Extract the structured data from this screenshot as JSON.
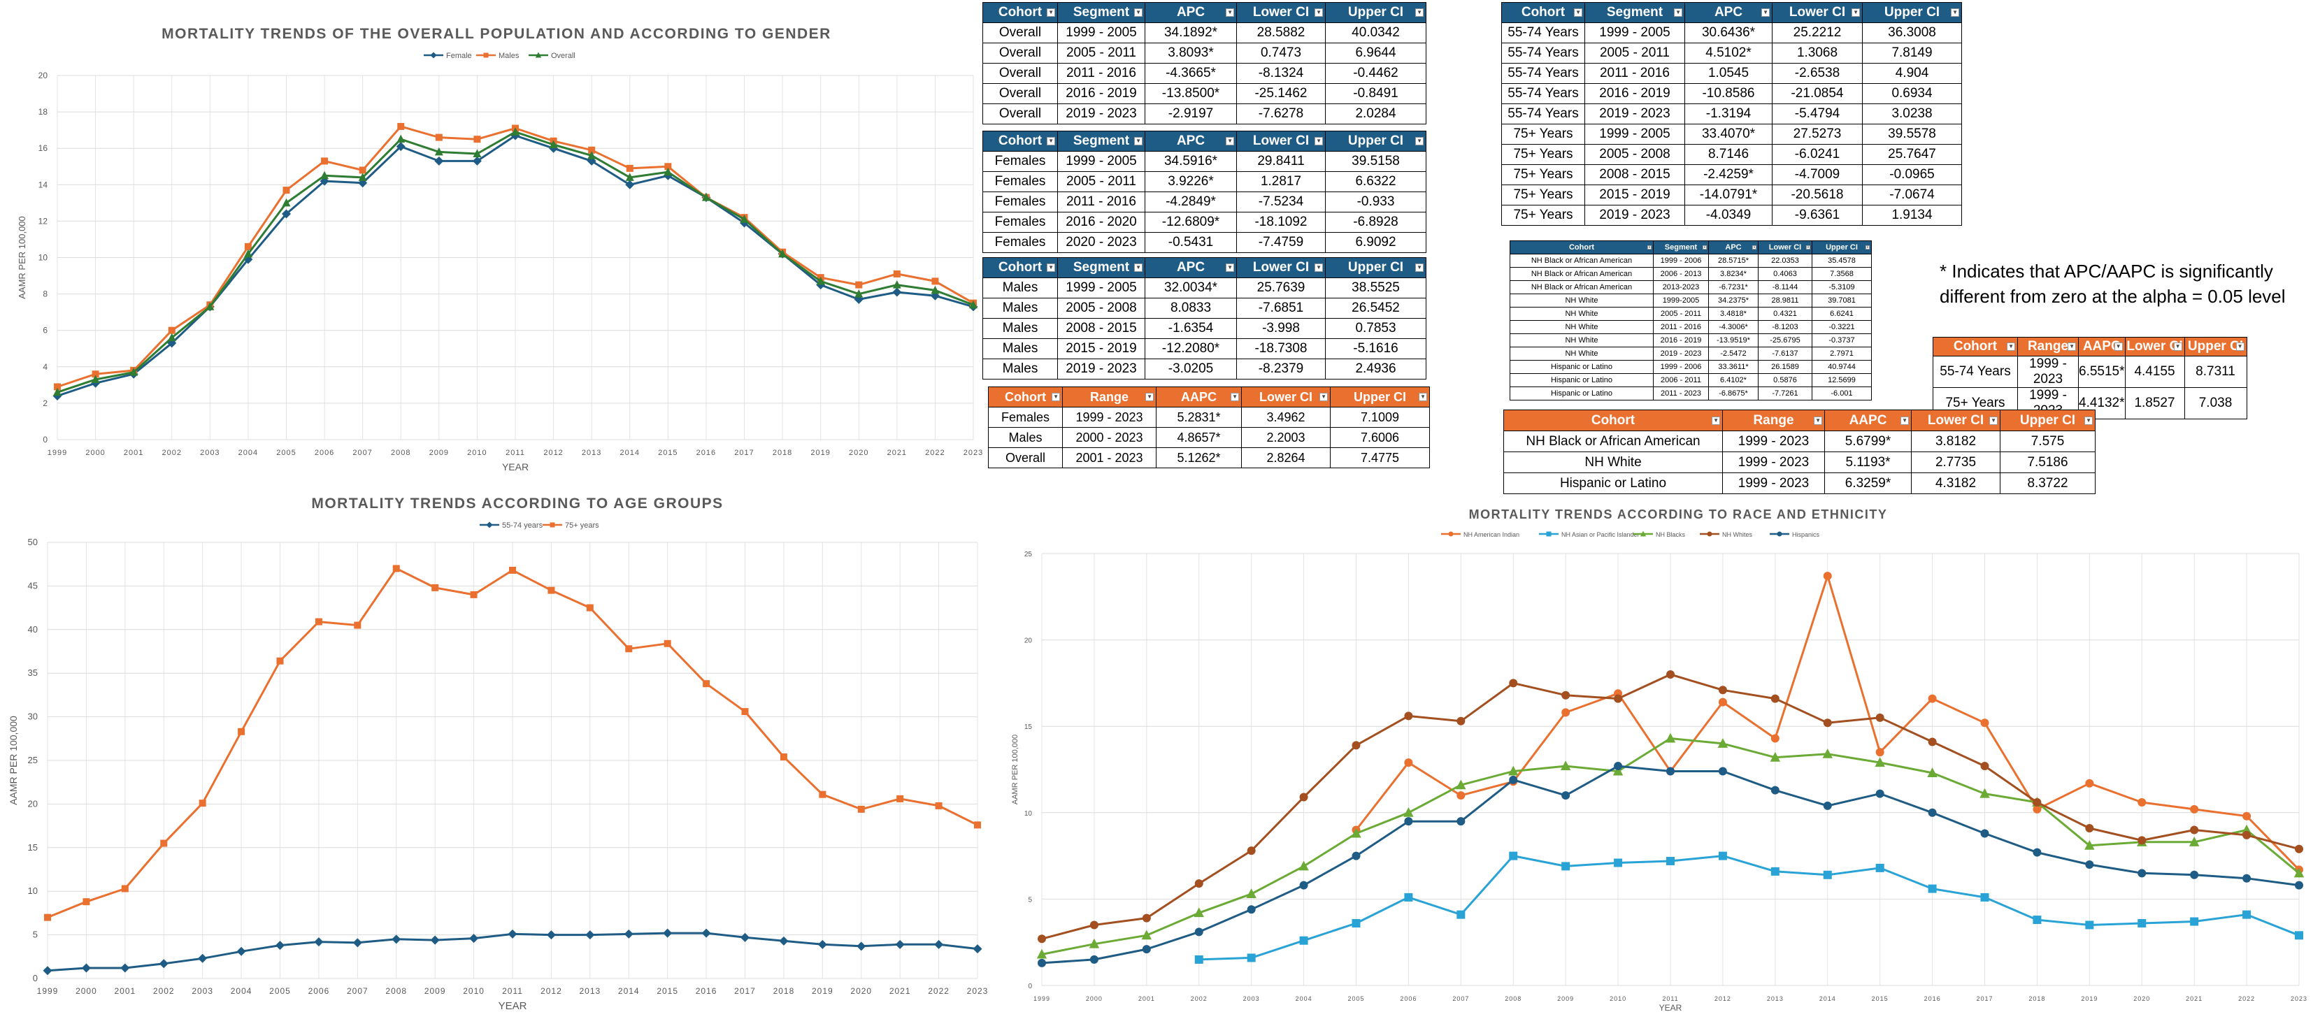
{
  "chart_data": [
    {
      "type": "line",
      "title": "MORTALITY TRENDS OF THE OVERALL POPULATION AND ACCORDING TO GENDER",
      "xlabel": "YEAR",
      "ylabel": "AAMR PER 100,000",
      "ylim": [
        0,
        20
      ],
      "yticks": [
        "0",
        "2",
        "4",
        "6",
        "8",
        "10",
        "12",
        "14",
        "16",
        "18",
        "20"
      ],
      "x": [
        "1999",
        "2000",
        "2001",
        "2002",
        "2003",
        "2004",
        "2005",
        "2006",
        "2007",
        "2008",
        "2009",
        "2010",
        "2011",
        "2012",
        "2013",
        "2014",
        "2015",
        "2016",
        "2017",
        "2018",
        "2019",
        "2020",
        "2021",
        "2022",
        "2023"
      ],
      "grid": true,
      "legend": "top",
      "series": [
        {
          "name": "Female",
          "color": "#1f5c85",
          "marker": "diamond",
          "values": [
            2.4,
            3.1,
            3.6,
            5.3,
            7.3,
            9.9,
            12.4,
            14.2,
            14.1,
            16.1,
            15.3,
            15.3,
            16.7,
            16.0,
            15.3,
            14.0,
            14.5,
            13.3,
            11.9,
            10.2,
            8.5,
            7.7,
            8.1,
            7.9,
            7.3
          ]
        },
        {
          "name": "Males",
          "color": "#ea7030",
          "marker": "square",
          "values": [
            2.9,
            3.6,
            3.8,
            6.0,
            7.4,
            10.6,
            13.7,
            15.3,
            14.8,
            17.2,
            16.6,
            16.5,
            17.1,
            16.4,
            15.9,
            14.9,
            15.0,
            13.3,
            12.2,
            10.3,
            8.9,
            8.5,
            9.1,
            8.7,
            7.5
          ]
        },
        {
          "name": "Overall",
          "color": "#2e7d32",
          "marker": "triangle",
          "values": [
            2.6,
            3.3,
            3.7,
            5.6,
            7.3,
            10.2,
            13.0,
            14.5,
            14.4,
            16.5,
            15.8,
            15.7,
            16.9,
            16.2,
            15.6,
            14.4,
            14.7,
            13.3,
            12.1,
            10.2,
            8.7,
            8.0,
            8.5,
            8.2,
            7.4
          ]
        }
      ]
    },
    {
      "type": "line",
      "title": "MORTALITY TRENDS ACCORDING TO AGE GROUPS",
      "xlabel": "YEAR",
      "ylabel": "AAMR PER 100,000",
      "ylim": [
        0,
        50
      ],
      "yticks": [
        "0",
        "5",
        "10",
        "15",
        "20",
        "25",
        "30",
        "35",
        "40",
        "45",
        "50"
      ],
      "x": [
        "1999",
        "2000",
        "2001",
        "2002",
        "2003",
        "2004",
        "2005",
        "2006",
        "2007",
        "2008",
        "2009",
        "2010",
        "2011",
        "2012",
        "2013",
        "2014",
        "2015",
        "2016",
        "2017",
        "2018",
        "2019",
        "2020",
        "2021",
        "2022",
        "2023"
      ],
      "grid": true,
      "legend": "top",
      "series": [
        {
          "name": "55-74 years",
          "color": "#1f5c85",
          "marker": "diamond",
          "values": [
            0.9,
            1.2,
            1.2,
            1.7,
            2.3,
            3.1,
            3.8,
            4.2,
            4.1,
            4.5,
            4.4,
            4.6,
            5.1,
            5.0,
            5.0,
            5.1,
            5.2,
            5.2,
            4.7,
            4.3,
            3.9,
            3.7,
            3.9,
            3.9,
            3.4
          ]
        },
        {
          "name": "75+ years",
          "color": "#ea7030",
          "marker": "square",
          "values": [
            7.0,
            8.8,
            10.3,
            15.5,
            20.1,
            28.3,
            36.4,
            40.9,
            40.5,
            47.0,
            44.8,
            44.0,
            46.8,
            44.5,
            42.5,
            37.8,
            38.4,
            33.8,
            30.6,
            25.4,
            21.1,
            19.4,
            20.6,
            19.8,
            17.6
          ]
        }
      ]
    },
    {
      "type": "line",
      "title": "MORTALITY TRENDS ACCORDING TO RACE AND ETHNICITY",
      "xlabel": "YEAR",
      "ylabel": "AAMR PER 100,000",
      "ylim": [
        0,
        25
      ],
      "yticks": [
        "0",
        "5",
        "10",
        "15",
        "20",
        "25"
      ],
      "x": [
        "1999",
        "2000",
        "2001",
        "2002",
        "2003",
        "2004",
        "2005",
        "2006",
        "2007",
        "2008",
        "2009",
        "2010",
        "2011",
        "2012",
        "2013",
        "2014",
        "2015",
        "2016",
        "2017",
        "2018",
        "2019",
        "2020",
        "2021",
        "2022",
        "2023"
      ],
      "grid": true,
      "legend": "top",
      "series": [
        {
          "name": "NH American Indian",
          "color": "#ea7030",
          "marker": "dot",
          "values": [
            null,
            null,
            null,
            null,
            null,
            null,
            9.0,
            12.9,
            11.0,
            11.8,
            15.8,
            16.9,
            12.4,
            16.4,
            14.3,
            23.7,
            13.5,
            16.6,
            15.2,
            10.2,
            11.7,
            10.6,
            10.2,
            9.8,
            6.7
          ]
        },
        {
          "name": "NH Asian or Pacific Islander",
          "color": "#29a3d6",
          "marker": "square",
          "values": [
            null,
            null,
            null,
            1.5,
            1.6,
            2.6,
            3.6,
            5.1,
            4.1,
            7.5,
            6.9,
            7.1,
            7.2,
            7.5,
            6.6,
            6.4,
            6.8,
            5.6,
            5.1,
            3.8,
            3.5,
            3.6,
            3.7,
            4.1,
            2.9
          ]
        },
        {
          "name": "NH Blacks",
          "color": "#6aaa35",
          "marker": "triangle",
          "values": [
            1.8,
            2.4,
            2.9,
            4.2,
            5.3,
            6.9,
            8.8,
            10.0,
            11.6,
            12.4,
            12.7,
            12.4,
            14.3,
            14.0,
            13.2,
            13.4,
            12.9,
            12.3,
            11.1,
            10.6,
            8.1,
            8.3,
            8.3,
            9.0,
            6.5
          ]
        },
        {
          "name": "NH Whites",
          "color": "#a34f1f",
          "marker": "dot",
          "values": [
            2.7,
            3.5,
            3.9,
            5.9,
            7.8,
            10.9,
            13.9,
            15.6,
            15.3,
            17.5,
            16.8,
            16.6,
            18.0,
            17.1,
            16.6,
            15.2,
            15.5,
            14.1,
            12.7,
            10.6,
            9.1,
            8.4,
            9.0,
            8.7,
            7.9
          ]
        },
        {
          "name": "Hispanics",
          "color": "#1f5c85",
          "marker": "dot",
          "values": [
            1.3,
            1.5,
            2.1,
            3.1,
            4.4,
            5.8,
            7.5,
            9.5,
            9.5,
            11.9,
            11.0,
            12.7,
            12.4,
            12.4,
            11.3,
            10.4,
            11.1,
            10.0,
            8.8,
            7.7,
            7.0,
            6.5,
            6.4,
            6.2,
            5.8
          ]
        }
      ]
    }
  ],
  "tables": [
    {
      "theme": "blue",
      "headers": [
        "Cohort",
        "Segment",
        "APC",
        "Lower CI",
        "Upper CI"
      ],
      "rows": [
        [
          "Overall",
          "1999 - 2005",
          "34.1892*",
          "28.5882",
          "40.0342"
        ],
        [
          "Overall",
          "2005 - 2011",
          "3.8093*",
          "0.7473",
          "6.9644"
        ],
        [
          "Overall",
          "2011 - 2016",
          "-4.3665*",
          "-8.1324",
          "-0.4462"
        ],
        [
          "Overall",
          "2016 - 2019",
          "-13.8500*",
          "-25.1462",
          "-0.8491"
        ],
        [
          "Overall",
          "2019 - 2023",
          "-2.9197",
          "-7.6278",
          "2.0284"
        ]
      ]
    },
    {
      "theme": "blue",
      "headers": [
        "Cohort",
        "Segment",
        "APC",
        "Lower CI",
        "Upper CI"
      ],
      "rows": [
        [
          "Females",
          "1999 - 2005",
          "34.5916*",
          "29.8411",
          "39.5158"
        ],
        [
          "Females",
          "2005 - 2011",
          "3.9226*",
          "1.2817",
          "6.6322"
        ],
        [
          "Females",
          "2011 - 2016",
          "-4.2849*",
          "-7.5234",
          "-0.933"
        ],
        [
          "Females",
          "2016 - 2020",
          "-12.6809*",
          "-18.1092",
          "-6.8928"
        ],
        [
          "Females",
          "2020 - 2023",
          "-0.5431",
          "-7.4759",
          "6.9092"
        ]
      ]
    },
    {
      "theme": "blue",
      "headers": [
        "Cohort",
        "Segment",
        "APC",
        "Lower CI",
        "Upper CI"
      ],
      "rows": [
        [
          "Males",
          "1999 - 2005",
          "32.0034*",
          "25.7639",
          "38.5525"
        ],
        [
          "Males",
          "2005 - 2008",
          "8.0833",
          "-7.6851",
          "26.5452"
        ],
        [
          "Males",
          "2008 - 2015",
          "-1.6354",
          "-3.998",
          "0.7853"
        ],
        [
          "Males",
          "2015 - 2019",
          "-12.2080*",
          "-18.7308",
          "-5.1616"
        ],
        [
          "Males",
          "2019 - 2023",
          "-3.0205",
          "-8.2379",
          "2.4936"
        ]
      ]
    },
    {
      "theme": "orange",
      "headers": [
        "Cohort",
        "Range",
        "AAPC",
        "Lower CI",
        "Upper CI"
      ],
      "rows": [
        [
          "Females",
          "1999 - 2023",
          "5.2831*",
          "3.4962",
          "7.1009"
        ],
        [
          "Males",
          "2000 - 2023",
          "4.8657*",
          "2.2003",
          "7.6006"
        ],
        [
          "Overall",
          "2001 - 2023",
          "5.1262*",
          "2.8264",
          "7.4775"
        ]
      ]
    },
    {
      "theme": "blue",
      "headers": [
        "Cohort",
        "Segment",
        "APC",
        "Lower CI",
        "Upper CI"
      ],
      "rows": [
        [
          "55-74 Years",
          "1999 - 2005",
          "30.6436*",
          "25.2212",
          "36.3008"
        ],
        [
          "55-74 Years",
          "2005 - 2011",
          "4.5102*",
          "1.3068",
          "7.8149"
        ],
        [
          "55-74 Years",
          "2011 - 2016",
          "1.0545",
          "-2.6538",
          "4.904"
        ],
        [
          "55-74 Years",
          "2016 - 2019",
          "-10.8586",
          "-21.0854",
          "0.6934"
        ],
        [
          "55-74 Years",
          "2019 - 2023",
          "-1.3194",
          "-5.4794",
          "3.0238"
        ],
        [
          "75+ Years",
          "1999 - 2005",
          "33.4070*",
          "27.5273",
          "39.5578"
        ],
        [
          "75+ Years",
          "2005 - 2008",
          "8.7146",
          "-6.0241",
          "25.7647"
        ],
        [
          "75+ Years",
          "2008 - 2015",
          "-2.4259*",
          "-4.7009",
          "-0.0965"
        ],
        [
          "75+ Years",
          "2015 - 2019",
          "-14.0791*",
          "-20.5618",
          "-7.0674"
        ],
        [
          "75+ Years",
          "2019 - 2023",
          "-4.0349",
          "-9.6361",
          "1.9134"
        ]
      ]
    },
    {
      "theme": "blue",
      "headers": [
        "Cohort",
        "Segment",
        "APC",
        "Lower CI",
        "Upper CI"
      ],
      "rows": [
        [
          "NH Black or African American",
          "1999 - 2006",
          "28.5715*",
          "22.0353",
          "35.4578"
        ],
        [
          "NH Black or African American",
          "2006 - 2013",
          "3.8234*",
          "0.4063",
          "7.3568"
        ],
        [
          "NH Black or African American",
          "2013-2023",
          "-6.7231*",
          "-8.1144",
          "-5.3109"
        ],
        [
          "NH White",
          "1999-2005",
          "34.2375*",
          "28.9811",
          "39.7081"
        ],
        [
          "NH White",
          "2005 - 2011",
          "3.4818*",
          "0.4321",
          "6.6241"
        ],
        [
          "NH White",
          "2011 - 2016",
          "-4.3006*",
          "-8.1203",
          "-0.3221"
        ],
        [
          "NH White",
          "2016 - 2019",
          "-13.9519*",
          "-25.6795",
          "-0.3737"
        ],
        [
          "NH White",
          "2019 - 2023",
          "-2.5472",
          "-7.6137",
          "2.7971"
        ],
        [
          "Hispanic or Latino",
          "1999 - 2006",
          "33.3611*",
          "26.1589",
          "40.9744"
        ],
        [
          "Hispanic or Latino",
          "2006 - 2011",
          "6.4102*",
          "0.5876",
          "12.5699"
        ],
        [
          "Hispanic or Latino",
          "2011 - 2023",
          "-6.8675*",
          "-7.7261",
          "-6.001"
        ]
      ]
    },
    {
      "theme": "orange",
      "headers": [
        "Cohort",
        "Range",
        "AAPC",
        "Lower CI",
        "Upper CI"
      ],
      "rows": [
        [
          "55-74 Years",
          "1999 - 2023",
          "6.5515*",
          "4.4155",
          "8.7311"
        ],
        [
          "75+ Years",
          "1999 - 2023",
          "4.4132*",
          "1.8527",
          "7.038"
        ]
      ]
    },
    {
      "theme": "orange",
      "headers": [
        "Cohort",
        "Range",
        "AAPC",
        "Lower CI",
        "Upper CI"
      ],
      "rows": [
        [
          "NH Black or African American",
          "1999 - 2023",
          "5.6799*",
          "3.8182",
          "7.575"
        ],
        [
          "NH White",
          "1999 - 2023",
          "5.1193*",
          "2.7735",
          "7.5186"
        ],
        [
          "Hispanic or Latino",
          "1999 - 2023",
          "6.3259*",
          "4.3182",
          "8.3722"
        ]
      ]
    }
  ],
  "note": "* Indicates that APC/AAPC is significantly different from zero at the alpha = 0.05 level",
  "dropdown_glyph": "▼"
}
